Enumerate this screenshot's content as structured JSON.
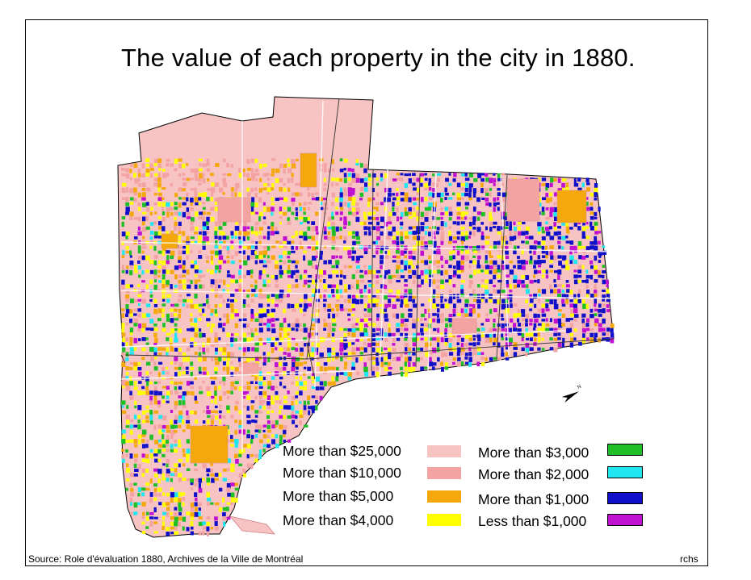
{
  "title": "The value of each property in the city in 1880.",
  "legend": [
    {
      "label": "More than $25,000",
      "color": "#f7c3c3"
    },
    {
      "label": "More than $10,000",
      "color": "#f4a3a3"
    },
    {
      "label": "More than $5,000",
      "color": "#f5a80c"
    },
    {
      "label": "More than $4,000",
      "color": "#ffff00"
    },
    {
      "label": "More than $3,000",
      "color": "#1fbf27"
    },
    {
      "label": "More than $2,000",
      "color": "#1fe6f0"
    },
    {
      "label": "More than $1,000",
      "color": "#1010c8"
    },
    {
      "label": "Less than $1,000",
      "color": "#c010d0"
    }
  ],
  "source": "Source: Role d'évaluation 1880, Archives de la Ville de Montréal",
  "author": "rchs",
  "map": {
    "base_color": "#f7c3c3",
    "boundary_color": "#333333",
    "icons": [
      "north-arrow-icon"
    ]
  }
}
